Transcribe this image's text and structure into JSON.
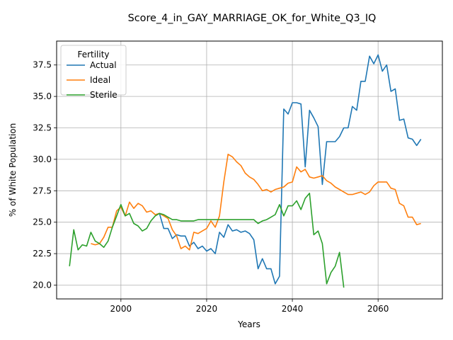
{
  "chart_data": {
    "type": "line",
    "title": "Score_4_in_GAY_MARRIAGE_OK_for_White_Q3_IQ",
    "xlabel": "Years",
    "ylabel": "% of White Population",
    "xlim": [
      1985,
      2075
    ],
    "ylim": [
      18.9,
      39.4
    ],
    "xticks": [
      2000,
      2020,
      2040,
      2060
    ],
    "yticks": [
      20.0,
      22.5,
      25.0,
      27.5,
      30.0,
      32.5,
      35.0,
      37.5
    ],
    "grid": true,
    "legend": {
      "title": "Fertility",
      "placement": "top-left"
    },
    "series": [
      {
        "name": "Actual",
        "color": "#1f77b4",
        "x": [
          2009,
          2010,
          2011,
          2012,
          2013,
          2014,
          2015,
          2016,
          2017,
          2018,
          2019,
          2020,
          2021,
          2022,
          2023,
          2024,
          2025,
          2026,
          2027,
          2028,
          2029,
          2030,
          2031,
          2032,
          2033,
          2034,
          2035,
          2036,
          2037,
          2038,
          2039,
          2040,
          2041,
          2042,
          2043,
          2044,
          2045,
          2046,
          2047,
          2048,
          2049,
          2050,
          2051,
          2052,
          2053,
          2054,
          2055,
          2056,
          2057,
          2058,
          2059,
          2060,
          2061,
          2062,
          2063,
          2064,
          2065,
          2066,
          2067,
          2068,
          2069,
          2070
        ],
        "y": [
          25.7,
          24.5,
          24.5,
          23.7,
          24.0,
          23.9,
          23.9,
          23.1,
          23.4,
          22.9,
          23.1,
          22.7,
          22.9,
          22.5,
          24.2,
          23.8,
          24.8,
          24.3,
          24.4,
          24.2,
          24.3,
          24.1,
          23.6,
          21.3,
          22.1,
          21.3,
          21.3,
          20.1,
          20.7,
          34.0,
          33.6,
          34.5,
          34.5,
          34.4,
          29.4,
          33.9,
          33.3,
          32.6,
          28.0,
          31.4,
          31.4,
          31.4,
          31.8,
          32.5,
          32.5,
          34.2,
          33.9,
          36.2,
          36.2,
          38.2,
          37.6,
          38.3,
          37.0,
          37.5,
          35.4,
          35.6,
          33.1,
          33.2,
          31.7,
          31.6,
          31.1,
          31.6
        ]
      },
      {
        "name": "Ideal",
        "color": "#ff7f0e",
        "x": [
          1993,
          1994,
          1995,
          1996,
          1997,
          1998,
          1999,
          2000,
          2001,
          2002,
          2003,
          2004,
          2005,
          2006,
          2007,
          2008,
          2009,
          2010,
          2011,
          2012,
          2013,
          2014,
          2015,
          2016,
          2017,
          2018,
          2019,
          2020,
          2021,
          2022,
          2023,
          2024,
          2025,
          2026,
          2027,
          2028,
          2029,
          2030,
          2031,
          2032,
          2033,
          2034,
          2035,
          2036,
          2037,
          2038,
          2039,
          2040,
          2041,
          2042,
          2043,
          2044,
          2045,
          2046,
          2047,
          2048,
          2049,
          2050,
          2051,
          2052,
          2053,
          2054,
          2055,
          2056,
          2057,
          2058,
          2059,
          2060,
          2061,
          2062,
          2063,
          2064,
          2065,
          2066,
          2067,
          2068,
          2069,
          2070
        ],
        "y": [
          23.3,
          23.2,
          23.3,
          23.8,
          24.6,
          24.6,
          25.9,
          26.2,
          25.5,
          26.6,
          26.1,
          26.5,
          26.3,
          25.8,
          25.9,
          25.6,
          25.7,
          25.5,
          25.3,
          24.4,
          23.9,
          22.9,
          23.1,
          22.8,
          24.2,
          24.1,
          24.3,
          24.5,
          25.1,
          24.6,
          25.5,
          28.2,
          30.4,
          30.2,
          29.8,
          29.5,
          28.9,
          28.6,
          28.4,
          28.0,
          27.5,
          27.6,
          27.4,
          27.6,
          27.7,
          27.8,
          28.1,
          28.2,
          29.4,
          29.0,
          29.2,
          28.6,
          28.5,
          28.6,
          28.7,
          28.3,
          28.1,
          27.8,
          27.6,
          27.4,
          27.2,
          27.2,
          27.3,
          27.4,
          27.2,
          27.4,
          27.9,
          28.2,
          28.2,
          28.2,
          27.7,
          27.6,
          26.5,
          26.3,
          25.4,
          25.4,
          24.8,
          24.9
        ]
      },
      {
        "name": "Sterile",
        "color": "#2ca02c",
        "x": [
          1988,
          1989,
          1990,
          1991,
          1992,
          1993,
          1994,
          1995,
          1996,
          1997,
          1998,
          1999,
          2000,
          2001,
          2002,
          2003,
          2004,
          2005,
          2006,
          2007,
          2008,
          2009,
          2010,
          2011,
          2012,
          2013,
          2014,
          2015,
          2016,
          2017,
          2018,
          2019,
          2020,
          2021,
          2022,
          2023,
          2024,
          2025,
          2026,
          2027,
          2028,
          2029,
          2030,
          2031,
          2032,
          2033,
          2034,
          2035,
          2036,
          2037,
          2038,
          2039,
          2040,
          2041,
          2042,
          2043,
          2044,
          2045,
          2046,
          2047,
          2048,
          2049,
          2050,
          2051,
          2052
        ],
        "y": [
          21.5,
          24.4,
          22.8,
          23.2,
          23.1,
          24.2,
          23.5,
          23.3,
          23.0,
          23.5,
          24.6,
          25.5,
          26.4,
          25.5,
          25.7,
          24.9,
          24.7,
          24.3,
          24.5,
          25.1,
          25.5,
          25.7,
          25.6,
          25.4,
          25.2,
          25.2,
          25.1,
          25.1,
          25.1,
          25.1,
          25.2,
          25.2,
          25.2,
          25.2,
          25.2,
          25.2,
          25.2,
          25.2,
          25.2,
          25.2,
          25.2,
          25.2,
          25.2,
          25.2,
          24.9,
          25.1,
          25.2,
          25.4,
          25.6,
          26.4,
          25.5,
          26.3,
          26.3,
          26.7,
          26.0,
          26.9,
          27.3,
          24.0,
          24.3,
          23.3,
          20.1,
          21.0,
          21.5,
          22.6,
          19.8
        ]
      }
    ]
  }
}
